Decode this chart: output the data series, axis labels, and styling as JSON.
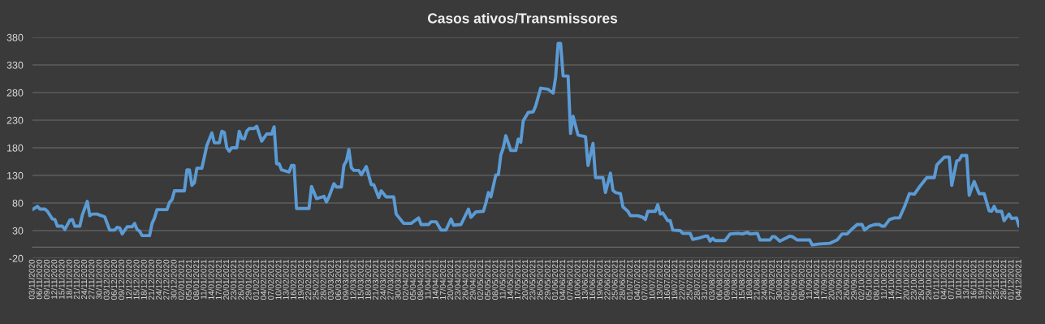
{
  "chart_data": {
    "type": "line",
    "title": "Casos ativos/Transmissores",
    "x": [
      "2020-11-03",
      "2020-11-05",
      "2020-11-06",
      "2020-11-08",
      "2020-11-09",
      "2020-11-11",
      "2020-11-12",
      "2020-11-13",
      "2020-11-15",
      "2020-11-16",
      "2020-11-18",
      "2020-11-19",
      "2020-11-20",
      "2020-11-22",
      "2020-11-23",
      "2020-11-25",
      "2020-11-26",
      "2020-11-27",
      "2020-11-29",
      "2020-11-30",
      "2020-12-02",
      "2020-12-04",
      "2020-12-06",
      "2020-12-07",
      "2020-12-08",
      "2020-12-09",
      "2020-12-11",
      "2020-12-13",
      "2020-12-14",
      "2020-12-15",
      "2020-12-16",
      "2020-12-17",
      "2020-12-20",
      "2020-12-21",
      "2020-12-22",
      "2020-12-23",
      "2020-12-27",
      "2020-12-28",
      "2020-12-29",
      "2020-12-30",
      "2021-01-03",
      "2021-01-04",
      "2021-01-05",
      "2021-01-06",
      "2021-01-07",
      "2021-01-08",
      "2021-01-10",
      "2021-01-12",
      "2021-01-14",
      "2021-01-15",
      "2021-01-17",
      "2021-01-18",
      "2021-01-19",
      "2021-01-20",
      "2021-01-21",
      "2021-01-22",
      "2021-01-24",
      "2021-01-25",
      "2021-01-26",
      "2021-01-27",
      "2021-01-28",
      "2021-01-29",
      "2021-01-31",
      "2021-02-01",
      "2021-02-03",
      "2021-02-05",
      "2021-02-07",
      "2021-02-08",
      "2021-02-09",
      "2021-02-10",
      "2021-02-11",
      "2021-02-14",
      "2021-02-15",
      "2021-02-16",
      "2021-02-17",
      "2021-02-22",
      "2021-02-23",
      "2021-02-25",
      "2021-02-28",
      "2021-03-01",
      "2021-03-02",
      "2021-03-04",
      "2021-03-05",
      "2021-03-07",
      "2021-03-08",
      "2021-03-09",
      "2021-03-10",
      "2021-03-11",
      "2021-03-12",
      "2021-03-14",
      "2021-03-15",
      "2021-03-17",
      "2021-03-19",
      "2021-03-20",
      "2021-03-22",
      "2021-03-23",
      "2021-03-25",
      "2021-03-28",
      "2021-03-29",
      "2021-04-01",
      "2021-04-04",
      "2021-04-07",
      "2021-04-08",
      "2021-04-11",
      "2021-04-12",
      "2021-04-14",
      "2021-04-16",
      "2021-04-18",
      "2021-04-20",
      "2021-04-21",
      "2021-04-24",
      "2021-04-27",
      "2021-04-28",
      "2021-04-30",
      "2021-05-03",
      "2021-05-04",
      "2021-05-05",
      "2021-05-06",
      "2021-05-08",
      "2021-05-09",
      "2021-05-10",
      "2021-05-11",
      "2021-05-12",
      "2021-05-14",
      "2021-05-16",
      "2021-05-17",
      "2021-05-18",
      "2021-05-19",
      "2021-05-21",
      "2021-05-23",
      "2021-05-24",
      "2021-05-26",
      "2021-05-29",
      "2021-05-31",
      "2021-06-01",
      "2021-06-02",
      "2021-06-03",
      "2021-06-04",
      "2021-06-06",
      "2021-06-07",
      "2021-06-08",
      "2021-06-10",
      "2021-06-13",
      "2021-06-14",
      "2021-06-16",
      "2021-06-17",
      "2021-06-20",
      "2021-06-21",
      "2021-06-23",
      "2021-06-24",
      "2021-06-25",
      "2021-06-27",
      "2021-06-28",
      "2021-06-30",
      "2021-07-01",
      "2021-07-04",
      "2021-07-06",
      "2021-07-07",
      "2021-07-08",
      "2021-07-11",
      "2021-07-12",
      "2021-07-13",
      "2021-07-14",
      "2021-07-16",
      "2021-07-17",
      "2021-07-18",
      "2021-07-21",
      "2021-07-22",
      "2021-07-25",
      "2021-07-26",
      "2021-07-28",
      "2021-07-31",
      "2021-08-01",
      "2021-08-02",
      "2021-08-03",
      "2021-08-04",
      "2021-08-08",
      "2021-08-10",
      "2021-08-13",
      "2021-08-15",
      "2021-08-17",
      "2021-08-18",
      "2021-08-21",
      "2021-08-22",
      "2021-08-26",
      "2021-08-27",
      "2021-08-28",
      "2021-08-30",
      "2021-09-03",
      "2021-09-04",
      "2021-09-06",
      "2021-09-11",
      "2021-09-12",
      "2021-09-15",
      "2021-09-19",
      "2021-09-22",
      "2021-09-24",
      "2021-09-26",
      "2021-09-28",
      "2021-09-30",
      "2021-10-02",
      "2021-10-03",
      "2021-10-05",
      "2021-10-07",
      "2021-10-09",
      "2021-10-10",
      "2021-10-11",
      "2021-10-13",
      "2021-10-15",
      "2021-10-17",
      "2021-10-19",
      "2021-10-21",
      "2021-10-23",
      "2021-10-25",
      "2021-10-28",
      "2021-10-31",
      "2021-11-01",
      "2021-11-04",
      "2021-11-06",
      "2021-11-07",
      "2021-11-09",
      "2021-11-10",
      "2021-11-11",
      "2021-11-13",
      "2021-11-14",
      "2021-11-15",
      "2021-11-16",
      "2021-11-18",
      "2021-11-20",
      "2021-11-22",
      "2021-11-23",
      "2021-11-24",
      "2021-11-25",
      "2021-11-27",
      "2021-11-28",
      "2021-11-30",
      "2021-12-01",
      "2021-12-03",
      "2021-12-04"
    ],
    "series": [
      {
        "color": "#5b9bd5",
        "values": [
          68,
          74,
          69,
          69,
          65,
          51,
          50,
          38,
          38,
          32,
          49,
          50,
          38,
          38,
          58,
          83,
          57,
          60,
          60,
          58,
          55,
          31,
          31,
          36,
          35,
          24,
          37,
          37,
          43,
          32,
          29,
          21,
          21,
          43,
          53,
          68,
          68,
          81,
          86,
          102,
          102,
          140,
          140,
          112,
          117,
          143,
          143,
          184,
          207,
          189,
          189,
          210,
          208,
          180,
          174,
          180,
          180,
          210,
          197,
          196,
          210,
          215,
          215,
          219,
          192,
          205,
          205,
          218,
          151,
          151,
          140,
          136,
          148,
          148,
          70,
          70,
          110,
          88,
          92,
          82,
          91,
          115,
          109,
          109,
          148,
          156,
          177,
          144,
          139,
          139,
          131,
          146,
          113,
          113,
          90,
          102,
          91,
          91,
          60,
          43,
          43,
          53,
          41,
          41,
          46,
          46,
          31,
          31,
          51,
          40,
          41,
          69,
          54,
          64,
          65,
          80,
          99,
          91,
          131,
          131,
          167,
          180,
          202,
          175,
          175,
          196,
          190,
          229,
          244,
          245,
          256,
          288,
          286,
          279,
          308,
          369,
          369,
          310,
          310,
          206,
          237,
          203,
          200,
          148,
          188,
          126,
          126,
          99,
          134,
          103,
          99,
          97,
          73,
          65,
          57,
          57,
          54,
          50,
          65,
          65,
          77,
          60,
          62,
          48,
          48,
          31,
          30,
          25,
          25,
          14,
          16,
          20,
          20,
          11,
          16,
          12,
          12,
          24,
          25,
          24,
          27,
          24,
          25,
          13,
          13,
          19,
          19,
          11,
          20,
          19,
          13,
          13,
          4,
          6,
          7,
          13,
          24,
          24,
          33,
          41,
          41,
          31,
          38,
          41,
          41,
          38,
          38,
          50,
          53,
          53,
          73,
          97,
          96,
          109,
          126,
          126,
          149,
          163,
          163,
          112,
          156,
          158,
          166,
          166,
          94,
          107,
          119,
          97,
          97,
          66,
          65,
          74,
          65,
          65,
          48,
          60,
          52,
          53,
          38
        ]
      }
    ],
    "xlim": [
      "2020-11-03",
      "2021-12-04"
    ],
    "xticks": [
      {
        "value": "2020-11-03",
        "label": "03/11/2020"
      },
      {
        "value": "2020-11-06",
        "label": "06/11/2020"
      },
      {
        "value": "2020-11-09",
        "label": "09/11/2020"
      },
      {
        "value": "2020-11-12",
        "label": "12/11/2020"
      },
      {
        "value": "2020-11-15",
        "label": "15/11/2020"
      },
      {
        "value": "2020-11-18",
        "label": "18/11/2020"
      },
      {
        "value": "2020-11-21",
        "label": "21/11/2020"
      },
      {
        "value": "2020-11-24",
        "label": "24/11/2020"
      },
      {
        "value": "2020-11-27",
        "label": "27/11/2020"
      },
      {
        "value": "2020-11-30",
        "label": "30/11/2020"
      },
      {
        "value": "2020-12-03",
        "label": "03/12/2020"
      },
      {
        "value": "2020-12-06",
        "label": "06/12/2020"
      },
      {
        "value": "2020-12-09",
        "label": "09/12/2020"
      },
      {
        "value": "2020-12-12",
        "label": "12/12/2020"
      },
      {
        "value": "2020-12-15",
        "label": "15/12/2020"
      },
      {
        "value": "2020-12-18",
        "label": "18/12/2020"
      },
      {
        "value": "2020-12-21",
        "label": "21/12/2020"
      },
      {
        "value": "2020-12-24",
        "label": "24/12/2020"
      },
      {
        "value": "2020-12-27",
        "label": "27/12/2020"
      },
      {
        "value": "2020-12-30",
        "label": "30/12/2020"
      },
      {
        "value": "2021-01-02",
        "label": "02/01/2021"
      },
      {
        "value": "2021-01-05",
        "label": "05/01/2021"
      },
      {
        "value": "2021-01-08",
        "label": "08/01/2021"
      },
      {
        "value": "2021-01-11",
        "label": "11/01/2021"
      },
      {
        "value": "2021-01-14",
        "label": "14/01/2021"
      },
      {
        "value": "2021-01-17",
        "label": "17/01/2021"
      },
      {
        "value": "2021-01-20",
        "label": "20/01/2021"
      },
      {
        "value": "2021-01-23",
        "label": "23/01/2021"
      },
      {
        "value": "2021-01-26",
        "label": "26/01/2021"
      },
      {
        "value": "2021-01-29",
        "label": "29/01/2021"
      },
      {
        "value": "2021-02-01",
        "label": "01/02/2021"
      },
      {
        "value": "2021-02-04",
        "label": "04/02/2021"
      },
      {
        "value": "2021-02-07",
        "label": "07/02/2021"
      },
      {
        "value": "2021-02-10",
        "label": "10/02/2021"
      },
      {
        "value": "2021-02-13",
        "label": "13/02/2021"
      },
      {
        "value": "2021-02-16",
        "label": "16/02/2021"
      },
      {
        "value": "2021-02-19",
        "label": "19/02/2021"
      },
      {
        "value": "2021-02-22",
        "label": "22/02/2021"
      },
      {
        "value": "2021-02-25",
        "label": "25/02/2021"
      },
      {
        "value": "2021-02-28",
        "label": "28/02/2021"
      },
      {
        "value": "2021-03-03",
        "label": "03/03/2021"
      },
      {
        "value": "2021-03-06",
        "label": "06/03/2021"
      },
      {
        "value": "2021-03-09",
        "label": "09/03/2021"
      },
      {
        "value": "2021-03-12",
        "label": "12/03/2021"
      },
      {
        "value": "2021-03-15",
        "label": "15/03/2021"
      },
      {
        "value": "2021-03-18",
        "label": "18/03/2021"
      },
      {
        "value": "2021-03-21",
        "label": "21/03/2021"
      },
      {
        "value": "2021-03-24",
        "label": "24/03/2021"
      },
      {
        "value": "2021-03-27",
        "label": "27/03/2021"
      },
      {
        "value": "2021-03-30",
        "label": "30/03/2021"
      },
      {
        "value": "2021-04-02",
        "label": "02/04/2021"
      },
      {
        "value": "2021-04-05",
        "label": "05/04/2021"
      },
      {
        "value": "2021-04-08",
        "label": "08/04/2021"
      },
      {
        "value": "2021-04-11",
        "label": "11/04/2021"
      },
      {
        "value": "2021-04-14",
        "label": "14/04/2021"
      },
      {
        "value": "2021-04-17",
        "label": "17/04/2021"
      },
      {
        "value": "2021-04-20",
        "label": "20/04/2021"
      },
      {
        "value": "2021-04-23",
        "label": "23/04/2021"
      },
      {
        "value": "2021-04-26",
        "label": "26/04/2021"
      },
      {
        "value": "2021-04-29",
        "label": "29/04/2021"
      },
      {
        "value": "2021-05-02",
        "label": "02/05/2021"
      },
      {
        "value": "2021-05-05",
        "label": "05/05/2021"
      },
      {
        "value": "2021-05-08",
        "label": "08/05/2021"
      },
      {
        "value": "2021-05-11",
        "label": "11/05/2021"
      },
      {
        "value": "2021-05-14",
        "label": "14/05/2021"
      },
      {
        "value": "2021-05-17",
        "label": "17/05/2021"
      },
      {
        "value": "2021-05-20",
        "label": "20/05/2021"
      },
      {
        "value": "2021-05-23",
        "label": "23/05/2021"
      },
      {
        "value": "2021-05-26",
        "label": "26/05/2021"
      },
      {
        "value": "2021-05-29",
        "label": "29/05/2021"
      },
      {
        "value": "2021-06-01",
        "label": "01/06/2021"
      },
      {
        "value": "2021-06-04",
        "label": "04/06/2021"
      },
      {
        "value": "2021-06-07",
        "label": "07/06/2021"
      },
      {
        "value": "2021-06-10",
        "label": "10/06/2021"
      },
      {
        "value": "2021-06-13",
        "label": "13/06/2021"
      },
      {
        "value": "2021-06-16",
        "label": "16/06/2021"
      },
      {
        "value": "2021-06-19",
        "label": "19/06/2021"
      },
      {
        "value": "2021-06-22",
        "label": "22/06/2021"
      },
      {
        "value": "2021-06-25",
        "label": "25/06/2021"
      },
      {
        "value": "2021-06-28",
        "label": "28/06/2021"
      },
      {
        "value": "2021-07-01",
        "label": "01/07/2021"
      },
      {
        "value": "2021-07-04",
        "label": "04/07/2021"
      },
      {
        "value": "2021-07-07",
        "label": "07/07/2021"
      },
      {
        "value": "2021-07-10",
        "label": "10/07/2021"
      },
      {
        "value": "2021-07-13",
        "label": "13/07/2021"
      },
      {
        "value": "2021-07-16",
        "label": "16/07/2021"
      },
      {
        "value": "2021-07-19",
        "label": "19/07/2021"
      },
      {
        "value": "2021-07-22",
        "label": "22/07/2021"
      },
      {
        "value": "2021-07-25",
        "label": "25/07/2021"
      },
      {
        "value": "2021-07-28",
        "label": "28/07/2021"
      },
      {
        "value": "2021-07-31",
        "label": "31/07/2021"
      },
      {
        "value": "2021-08-03",
        "label": "03/08/2021"
      },
      {
        "value": "2021-08-06",
        "label": "06/08/2021"
      },
      {
        "value": "2021-08-09",
        "label": "09/08/2021"
      },
      {
        "value": "2021-08-12",
        "label": "12/08/2021"
      },
      {
        "value": "2021-08-15",
        "label": "15/08/2021"
      },
      {
        "value": "2021-08-18",
        "label": "18/08/2021"
      },
      {
        "value": "2021-08-21",
        "label": "21/08/2021"
      },
      {
        "value": "2021-08-24",
        "label": "24/08/2021"
      },
      {
        "value": "2021-08-27",
        "label": "27/08/2021"
      },
      {
        "value": "2021-08-30",
        "label": "30/08/2021"
      },
      {
        "value": "2021-09-02",
        "label": "02/09/2021"
      },
      {
        "value": "2021-09-05",
        "label": "05/09/2021"
      },
      {
        "value": "2021-09-08",
        "label": "08/09/2021"
      },
      {
        "value": "2021-09-11",
        "label": "11/09/2021"
      },
      {
        "value": "2021-09-14",
        "label": "14/09/2021"
      },
      {
        "value": "2021-09-17",
        "label": "17/09/2021"
      },
      {
        "value": "2021-09-20",
        "label": "20/09/2021"
      },
      {
        "value": "2021-09-23",
        "label": "23/09/2021"
      },
      {
        "value": "2021-09-26",
        "label": "26/09/2021"
      },
      {
        "value": "2021-09-29",
        "label": "29/09/2021"
      },
      {
        "value": "2021-10-02",
        "label": "02/10/2021"
      },
      {
        "value": "2021-10-05",
        "label": "05/10/2021"
      },
      {
        "value": "2021-10-08",
        "label": "08/10/2021"
      },
      {
        "value": "2021-10-11",
        "label": "11/10/2021"
      },
      {
        "value": "2021-10-14",
        "label": "14/10/2021"
      },
      {
        "value": "2021-10-17",
        "label": "17/10/2021"
      },
      {
        "value": "2021-10-20",
        "label": "20/10/2021"
      },
      {
        "value": "2021-10-23",
        "label": "23/10/2021"
      },
      {
        "value": "2021-10-26",
        "label": "26/10/2021"
      },
      {
        "value": "2021-10-29",
        "label": "29/10/2021"
      },
      {
        "value": "2021-11-01",
        "label": "01/11/2021"
      },
      {
        "value": "2021-11-04",
        "label": "04/11/2021"
      },
      {
        "value": "2021-11-07",
        "label": "07/11/2021"
      },
      {
        "value": "2021-11-10",
        "label": "10/11/2021"
      },
      {
        "value": "2021-11-13",
        "label": "13/11/2021"
      },
      {
        "value": "2021-11-16",
        "label": "16/11/2021"
      },
      {
        "value": "2021-11-19",
        "label": "19/11/2021"
      },
      {
        "value": "2021-11-22",
        "label": "22/11/2021"
      },
      {
        "value": "2021-11-25",
        "label": "25/11/2021"
      },
      {
        "value": "2021-11-28",
        "label": "28/11/2021"
      },
      {
        "value": "2021-12-01",
        "label": "01/12/2021"
      },
      {
        "value": "2021-12-04",
        "label": "04/12/2021"
      }
    ],
    "ylim": [
      -20,
      380
    ],
    "yticks": [
      -20,
      30,
      80,
      130,
      180,
      230,
      280,
      330,
      380
    ],
    "grid": "y"
  }
}
